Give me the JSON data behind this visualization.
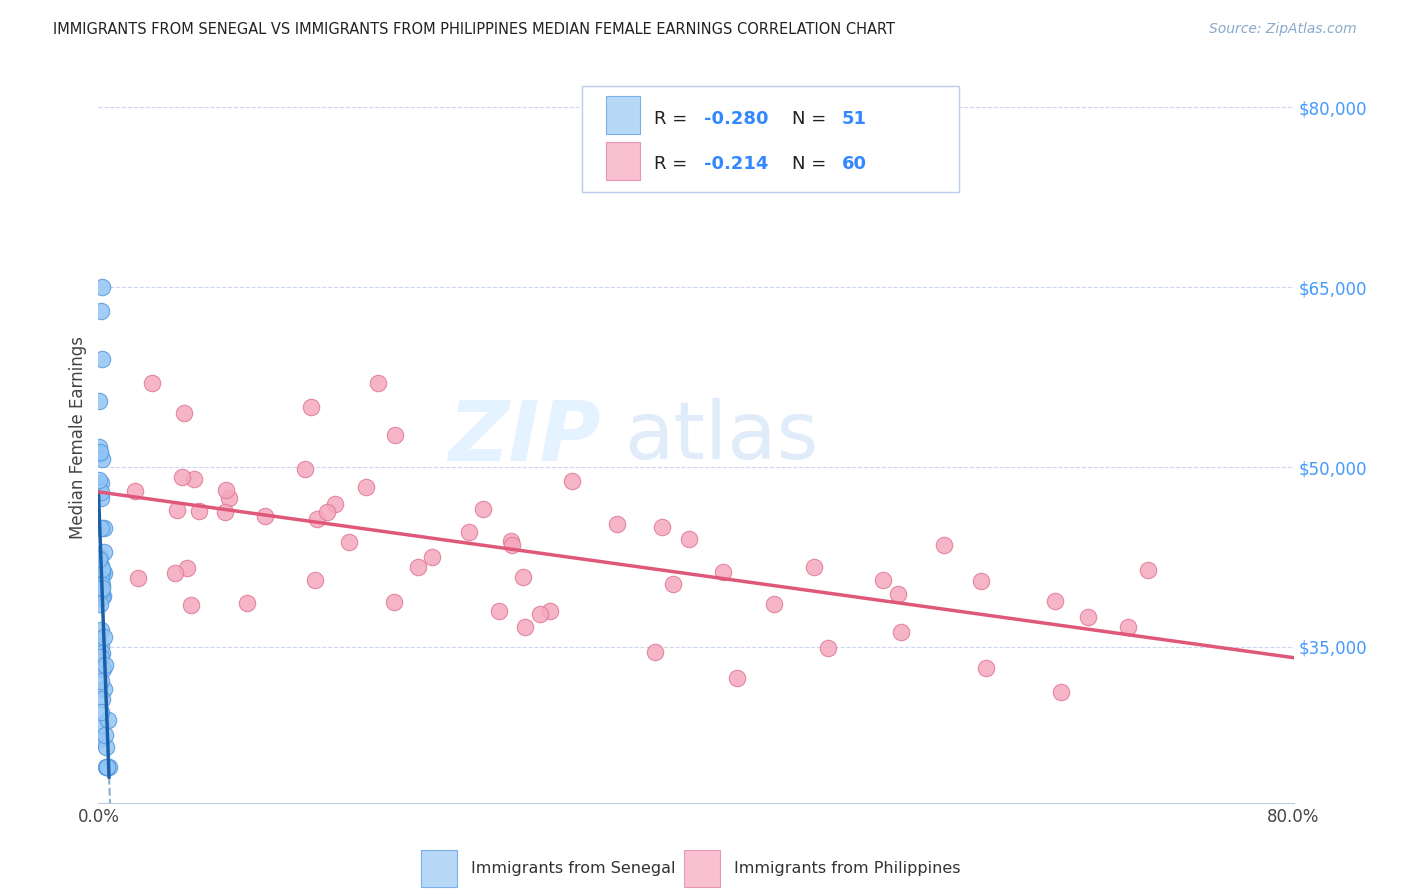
{
  "title": "IMMIGRANTS FROM SENEGAL VS IMMIGRANTS FROM PHILIPPINES MEDIAN FEMALE EARNINGS CORRELATION CHART",
  "source": "Source: ZipAtlas.com",
  "ylabel": "Median Female Earnings",
  "y_ticks": [
    35000,
    50000,
    65000,
    80000
  ],
  "y_tick_labels": [
    "$35,000",
    "$50,000",
    "$65,000",
    "$80,000"
  ],
  "x_lim": [
    0.0,
    0.8
  ],
  "y_lim": [
    22000,
    83000
  ],
  "senegal_color": "#92c5f5",
  "senegal_edge": "#5599dd",
  "philippines_color": "#f5a8be",
  "philippines_edge": "#e07898",
  "trend_senegal_color": "#1a5fa8",
  "trend_philippines_color": "#e05878",
  "grid_color": "#ccd8ee",
  "background_color": "#ffffff",
  "R_senegal": -0.28,
  "N_senegal": 51,
  "R_philippines": -0.214,
  "N_philippines": 60,
  "legend_sen_face": "#b8d8f8",
  "legend_sen_edge": "#7aafe8",
  "legend_phi_face": "#f8c0d0",
  "legend_phi_edge": "#e898b0"
}
